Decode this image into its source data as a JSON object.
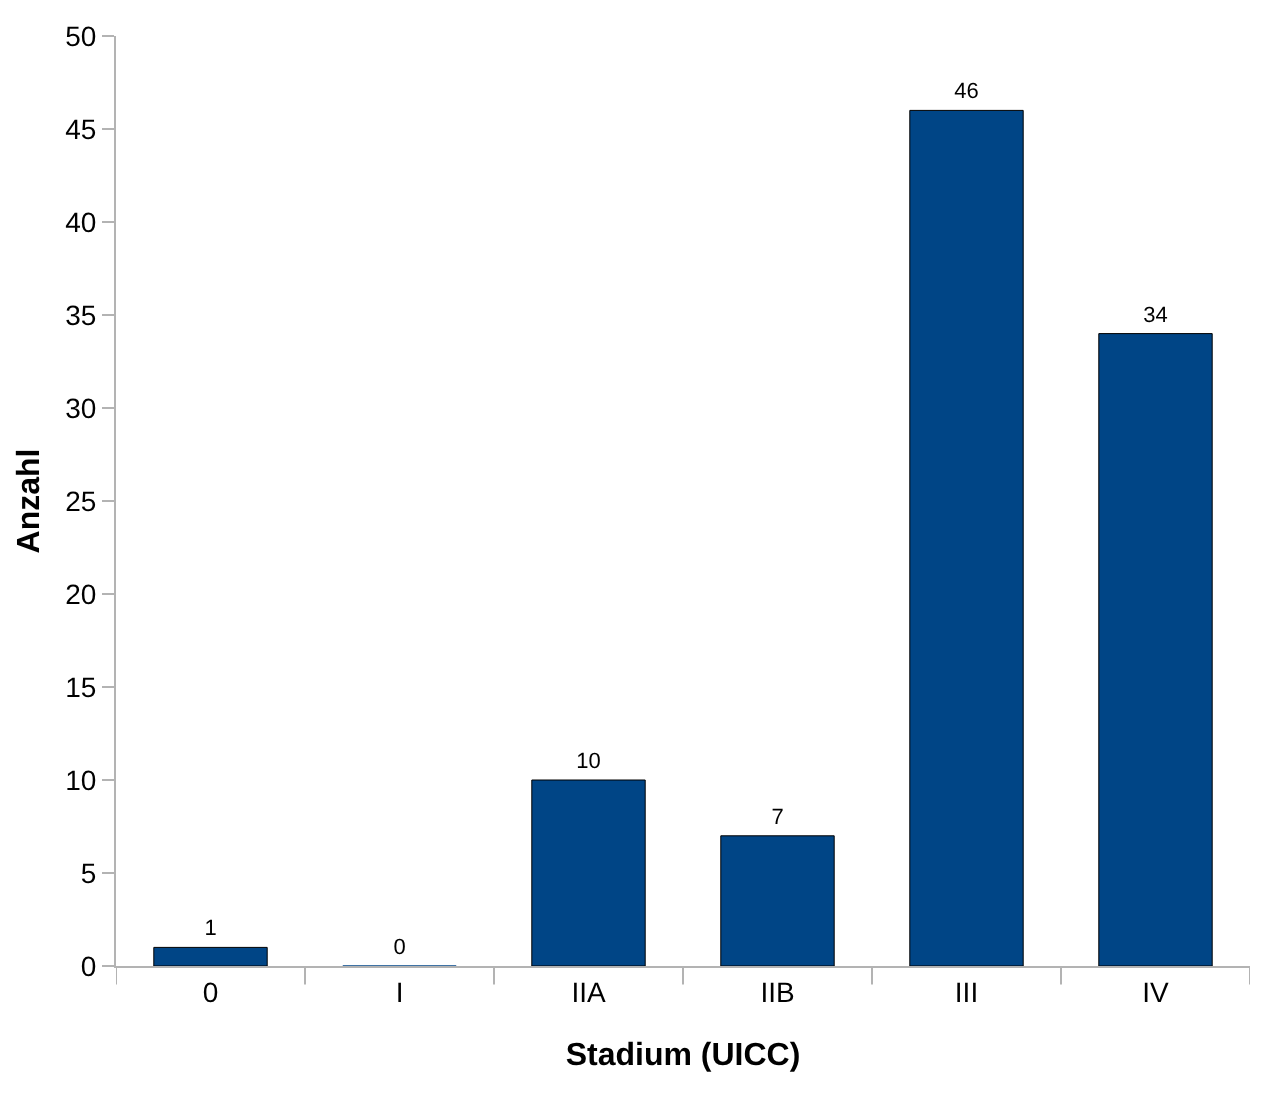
{
  "chart_data": {
    "type": "bar",
    "xlabel": "Stadium (UICC)",
    "ylabel": "Anzahl",
    "categories": [
      "0",
      "I",
      "IIA",
      "IIB",
      "III",
      "IV"
    ],
    "values": [
      1,
      0,
      10,
      7,
      46,
      34
    ],
    "color": "#004586",
    "ylim": [
      0,
      50
    ],
    "yticks": [
      0,
      5,
      10,
      15,
      20,
      25,
      30,
      35,
      40,
      45,
      50
    ],
    "data_labels": true
  }
}
